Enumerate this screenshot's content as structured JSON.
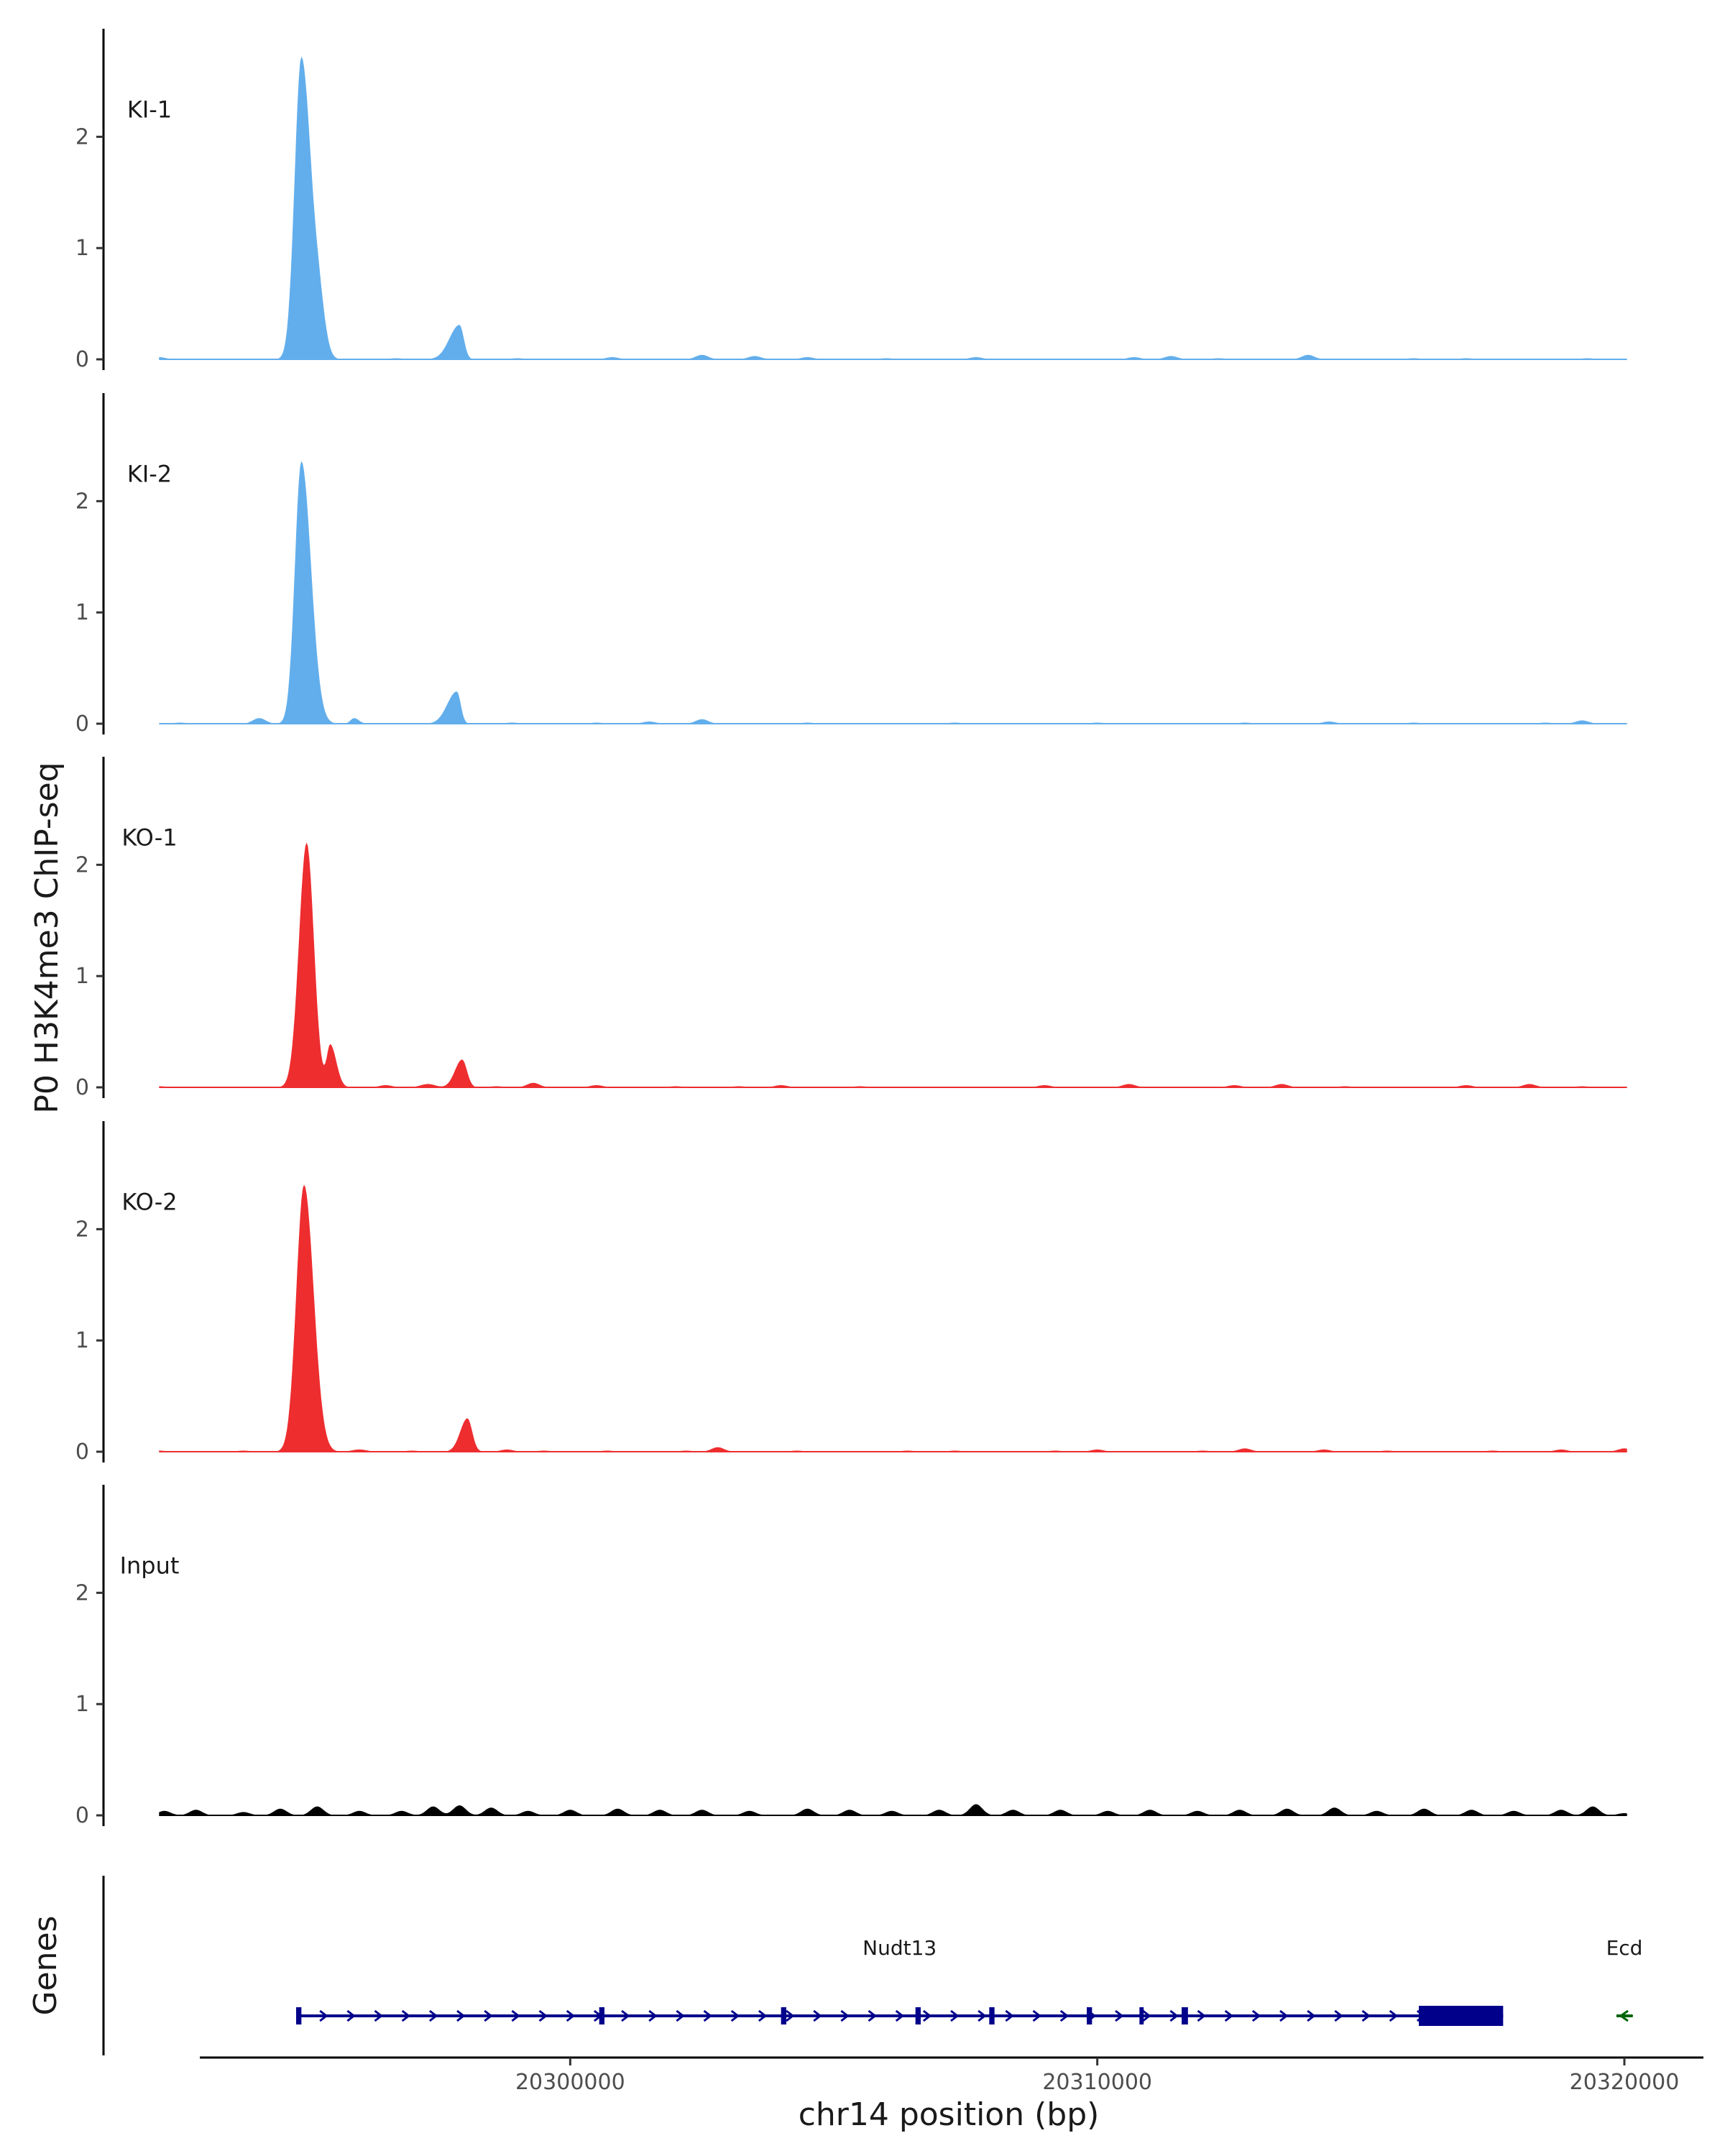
{
  "chart_data": {
    "type": "area",
    "title": "",
    "ylabel": "P0 H3K4me3 ChIP-seq",
    "xlabel": "chr14 position (bp)",
    "xlim": [
      20293000,
      20321500
    ],
    "x_ticks": [
      20300000,
      20310000,
      20320000
    ],
    "x_tick_labels": [
      "20300000",
      "20310000",
      "20320000"
    ],
    "ylim": [
      0,
      2.9
    ],
    "y_ticks": [
      0,
      1,
      2
    ],
    "y_tick_labels": [
      "0",
      "1",
      "2"
    ],
    "colors": {
      "KI": "#62aeec",
      "KO": "#ee2d2f",
      "Input": "#000000",
      "gene": "#00008b",
      "gene_minus": "#006400"
    },
    "tracks": [
      {
        "name": "KI-1",
        "color": "#62aeec",
        "peaks": [
          {
            "x": 20294900,
            "y": 2.72,
            "l": 280,
            "r": 420
          },
          {
            "x": 20295250,
            "y": 0.28,
            "l": 200,
            "r": 250
          },
          {
            "x": 20297900,
            "y": 0.31,
            "l": 420,
            "r": 180
          }
        ],
        "noise": [
          {
            "x": 20292200,
            "y": 0.02
          },
          {
            "x": 20296700,
            "y": 0.01
          },
          {
            "x": 20299000,
            "y": 0.01
          },
          {
            "x": 20300800,
            "y": 0.02
          },
          {
            "x": 20302500,
            "y": 0.04
          },
          {
            "x": 20303500,
            "y": 0.03
          },
          {
            "x": 20304500,
            "y": 0.02
          },
          {
            "x": 20306000,
            "y": 0.01
          },
          {
            "x": 20307700,
            "y": 0.02
          },
          {
            "x": 20310700,
            "y": 0.02
          },
          {
            "x": 20311400,
            "y": 0.03
          },
          {
            "x": 20312300,
            "y": 0.01
          },
          {
            "x": 20314000,
            "y": 0.04
          },
          {
            "x": 20316000,
            "y": 0.01
          },
          {
            "x": 20317000,
            "y": 0.01
          },
          {
            "x": 20319300,
            "y": 0.01
          }
        ]
      },
      {
        "name": "KI-2",
        "color": "#62aeec",
        "peaks": [
          {
            "x": 20294900,
            "y": 2.36,
            "l": 270,
            "r": 400
          },
          {
            "x": 20295900,
            "y": 0.05,
            "l": 150,
            "r": 200
          },
          {
            "x": 20297850,
            "y": 0.29,
            "l": 400,
            "r": 160
          }
        ],
        "noise": [
          {
            "x": 20292600,
            "y": 0.01
          },
          {
            "x": 20294100,
            "y": 0.05
          },
          {
            "x": 20298900,
            "y": 0.01
          },
          {
            "x": 20300500,
            "y": 0.01
          },
          {
            "x": 20301500,
            "y": 0.02
          },
          {
            "x": 20302500,
            "y": 0.04
          },
          {
            "x": 20304500,
            "y": 0.01
          },
          {
            "x": 20307300,
            "y": 0.01
          },
          {
            "x": 20310000,
            "y": 0.01
          },
          {
            "x": 20312800,
            "y": 0.01
          },
          {
            "x": 20314400,
            "y": 0.02
          },
          {
            "x": 20316000,
            "y": 0.01
          },
          {
            "x": 20318500,
            "y": 0.01
          },
          {
            "x": 20319200,
            "y": 0.03
          }
        ]
      },
      {
        "name": "KO-1",
        "color": "#ee2d2f",
        "peaks": [
          {
            "x": 20295000,
            "y": 2.2,
            "l": 320,
            "r": 300
          },
          {
            "x": 20295450,
            "y": 0.38,
            "l": 150,
            "r": 250
          },
          {
            "x": 20297950,
            "y": 0.25,
            "l": 300,
            "r": 200
          },
          {
            "x": 20297300,
            "y": 0.03,
            "l": 300,
            "r": 300
          }
        ],
        "noise": [
          {
            "x": 20292200,
            "y": 0.01
          },
          {
            "x": 20296500,
            "y": 0.02
          },
          {
            "x": 20298600,
            "y": 0.01
          },
          {
            "x": 20299300,
            "y": 0.04
          },
          {
            "x": 20300500,
            "y": 0.02
          },
          {
            "x": 20302000,
            "y": 0.01
          },
          {
            "x": 20303200,
            "y": 0.01
          },
          {
            "x": 20304000,
            "y": 0.02
          },
          {
            "x": 20305500,
            "y": 0.01
          },
          {
            "x": 20309000,
            "y": 0.02
          },
          {
            "x": 20310600,
            "y": 0.03
          },
          {
            "x": 20312600,
            "y": 0.02
          },
          {
            "x": 20313500,
            "y": 0.03
          },
          {
            "x": 20314700,
            "y": 0.01
          },
          {
            "x": 20317000,
            "y": 0.02
          },
          {
            "x": 20318200,
            "y": 0.03
          },
          {
            "x": 20319200,
            "y": 0.01
          }
        ]
      },
      {
        "name": "KO-2",
        "color": "#ee2d2f",
        "peaks": [
          {
            "x": 20294950,
            "y": 2.4,
            "l": 320,
            "r": 400
          },
          {
            "x": 20296000,
            "y": 0.02,
            "l": 300,
            "r": 300
          },
          {
            "x": 20298050,
            "y": 0.3,
            "l": 300,
            "r": 200
          }
        ],
        "noise": [
          {
            "x": 20292200,
            "y": 0.01
          },
          {
            "x": 20293800,
            "y": 0.01
          },
          {
            "x": 20297000,
            "y": 0.01
          },
          {
            "x": 20298800,
            "y": 0.02
          },
          {
            "x": 20299500,
            "y": 0.01
          },
          {
            "x": 20300700,
            "y": 0.01
          },
          {
            "x": 20302200,
            "y": 0.01
          },
          {
            "x": 20302800,
            "y": 0.04
          },
          {
            "x": 20304300,
            "y": 0.01
          },
          {
            "x": 20306400,
            "y": 0.01
          },
          {
            "x": 20307300,
            "y": 0.01
          },
          {
            "x": 20309200,
            "y": 0.01
          },
          {
            "x": 20310000,
            "y": 0.02
          },
          {
            "x": 20312000,
            "y": 0.01
          },
          {
            "x": 20312800,
            "y": 0.03
          },
          {
            "x": 20314300,
            "y": 0.02
          },
          {
            "x": 20315500,
            "y": 0.01
          },
          {
            "x": 20317500,
            "y": 0.01
          },
          {
            "x": 20318800,
            "y": 0.02
          },
          {
            "x": 20320000,
            "y": 0.03
          }
        ]
      },
      {
        "name": "Input",
        "color": "#000000",
        "peaks": [],
        "noise": [
          {
            "x": 20292300,
            "y": 0.04
          },
          {
            "x": 20292900,
            "y": 0.05
          },
          {
            "x": 20293800,
            "y": 0.03
          },
          {
            "x": 20294500,
            "y": 0.06
          },
          {
            "x": 20295200,
            "y": 0.08
          },
          {
            "x": 20296000,
            "y": 0.04
          },
          {
            "x": 20296800,
            "y": 0.04
          },
          {
            "x": 20297400,
            "y": 0.08
          },
          {
            "x": 20297900,
            "y": 0.09
          },
          {
            "x": 20298500,
            "y": 0.07
          },
          {
            "x": 20299200,
            "y": 0.04
          },
          {
            "x": 20300000,
            "y": 0.05
          },
          {
            "x": 20300900,
            "y": 0.06
          },
          {
            "x": 20301700,
            "y": 0.05
          },
          {
            "x": 20302500,
            "y": 0.05
          },
          {
            "x": 20303400,
            "y": 0.04
          },
          {
            "x": 20304500,
            "y": 0.06
          },
          {
            "x": 20305300,
            "y": 0.05
          },
          {
            "x": 20306100,
            "y": 0.04
          },
          {
            "x": 20307000,
            "y": 0.05
          },
          {
            "x": 20307700,
            "y": 0.1
          },
          {
            "x": 20308400,
            "y": 0.05
          },
          {
            "x": 20309300,
            "y": 0.05
          },
          {
            "x": 20310200,
            "y": 0.04
          },
          {
            "x": 20311000,
            "y": 0.05
          },
          {
            "x": 20311900,
            "y": 0.04
          },
          {
            "x": 20312700,
            "y": 0.05
          },
          {
            "x": 20313600,
            "y": 0.06
          },
          {
            "x": 20314500,
            "y": 0.07
          },
          {
            "x": 20315300,
            "y": 0.04
          },
          {
            "x": 20316200,
            "y": 0.06
          },
          {
            "x": 20317100,
            "y": 0.05
          },
          {
            "x": 20317900,
            "y": 0.04
          },
          {
            "x": 20318800,
            "y": 0.05
          },
          {
            "x": 20319400,
            "y": 0.08
          },
          {
            "x": 20320000,
            "y": 0.02
          }
        ]
      }
    ],
    "genes_panel": {
      "label": "Genes",
      "genes": [
        {
          "name": "Nudt13",
          "strand": "+",
          "start": 20294800,
          "end": 20317700,
          "exons": [
            [
              20294800,
              20294900
            ],
            [
              20300550,
              20300650
            ],
            [
              20304000,
              20304100
            ],
            [
              20306550,
              20306650
            ],
            [
              20307950,
              20308050
            ],
            [
              20309800,
              20309900
            ],
            [
              20310800,
              20310880
            ],
            [
              20311600,
              20311720
            ],
            [
              20316100,
              20317700
            ]
          ]
        },
        {
          "name": "Ecd",
          "strand": "-",
          "start": 20319850,
          "end": 20320150,
          "exons": []
        }
      ]
    }
  }
}
